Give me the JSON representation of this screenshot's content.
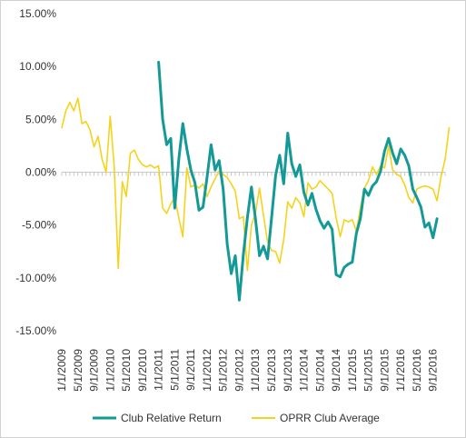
{
  "chart_data": {
    "type": "line",
    "ylim": [
      -15,
      15
    ],
    "ytick_labels": [
      "15.00%",
      "10.00%",
      "5.00%",
      "0.00%",
      "-5.00%",
      "-10.00%",
      "-15.00%"
    ],
    "ytick_values": [
      15,
      10,
      5,
      0,
      -5,
      -10,
      -15
    ],
    "x_tick_labels": [
      "1/1/2009",
      "5/1/2009",
      "9/1/2009",
      "1/1/2010",
      "5/1/2010",
      "9/1/2010",
      "1/1/2011",
      "5/1/2011",
      "9/1/2011",
      "1/1/2012",
      "5/1/2012",
      "9/1/2012",
      "1/1/2013",
      "5/1/2013",
      "9/1/2013",
      "1/1/2014",
      "5/1/2014",
      "9/1/2014",
      "1/1/2015",
      "5/1/2015",
      "9/1/2015",
      "1/1/2016",
      "5/1/2016",
      "9/1/2016"
    ],
    "x_start": "1/1/2009",
    "x_end": "12/1/2016",
    "grid": false,
    "legend_position": "bottom",
    "series": [
      {
        "name": "Club Relative Return",
        "color": "#149a96",
        "start": "1/1/2011",
        "values": [
          10.4,
          5.0,
          2.6,
          3.2,
          -3.4,
          1.2,
          4.6,
          2.2,
          0.2,
          -1.0,
          -3.6,
          -3.3,
          -0.5,
          2.6,
          0.2,
          1.1,
          -1.6,
          -6.8,
          -9.6,
          -7.9,
          -12.1,
          -7.8,
          -4.3,
          -1.4,
          -4.4,
          -7.9,
          -7.0,
          -8.2,
          -4.3,
          -0.3,
          1.6,
          -1.1,
          3.7,
          0.8,
          -0.4,
          0.7,
          -1.9,
          -3.1,
          -2.0,
          -3.5,
          -4.6,
          -5.3,
          -4.7,
          -5.4,
          -9.7,
          -9.9,
          -9.0,
          -8.7,
          -8.5,
          -5.8,
          -4.4,
          -1.6,
          -2.2,
          -1.3,
          -0.9,
          0.1,
          2.0,
          3.2,
          1.8,
          0.8,
          2.2,
          1.6,
          0.6,
          -1.6,
          -2.4,
          -3.3,
          -5.2,
          -4.8,
          -6.2,
          -4.4
        ]
      },
      {
        "name": "OPRR Club Average",
        "color": "#f5d31c",
        "start": "1/1/2009",
        "values": [
          4.2,
          5.8,
          6.6,
          5.8,
          7.0,
          4.6,
          4.8,
          4.0,
          2.4,
          3.4,
          1.2,
          0.0,
          5.3,
          0.5,
          -9.1,
          -0.9,
          -2.3,
          1.8,
          2.1,
          1.2,
          0.7,
          0.5,
          0.7,
          0.4,
          0.6,
          -3.4,
          -3.9,
          -3.0,
          -2.4,
          -4.3,
          -6.1,
          0.4,
          -1.4,
          -1.2,
          -1.5,
          -1.1,
          -2.3,
          -1.4,
          -0.6,
          0.1,
          -0.2,
          -0.5,
          -1.1,
          -1.8,
          -4.4,
          -4.2,
          -9.3,
          -5.0,
          -3.9,
          -1.5,
          -4.1,
          -6.6,
          -7.4,
          -7.5,
          -8.6,
          -6.4,
          -2.8,
          -3.4,
          -2.4,
          -2.9,
          -4.2,
          -1.0,
          -1.6,
          -1.4,
          -0.8,
          -1.2,
          -1.6,
          -2.0,
          -4.3,
          -6.1,
          -4.5,
          -4.7,
          -4.5,
          -5.6,
          -3.4,
          -1.5,
          -0.8,
          0.5,
          -0.2,
          0.6,
          0.4,
          2.5,
          0.2,
          -0.2,
          -0.4,
          -1.2,
          -2.4,
          -2.9,
          -1.6,
          -1.4,
          -1.3,
          -1.4,
          -1.6,
          -2.7,
          -0.4,
          1.2,
          4.2
        ]
      }
    ]
  }
}
